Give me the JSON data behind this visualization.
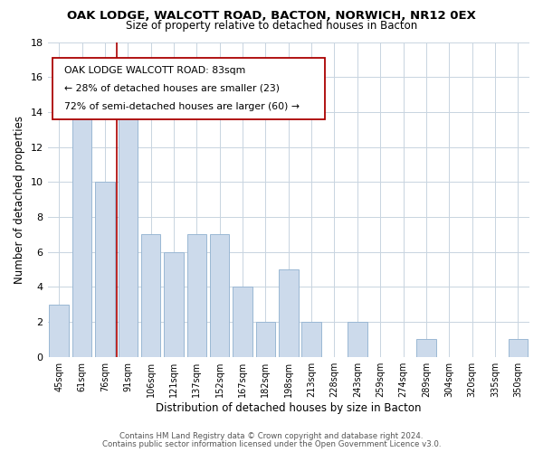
{
  "title": "OAK LODGE, WALCOTT ROAD, BACTON, NORWICH, NR12 0EX",
  "subtitle": "Size of property relative to detached houses in Bacton",
  "xlabel": "Distribution of detached houses by size in Bacton",
  "ylabel": "Number of detached properties",
  "bar_labels": [
    "45sqm",
    "61sqm",
    "76sqm",
    "91sqm",
    "106sqm",
    "121sqm",
    "137sqm",
    "152sqm",
    "167sqm",
    "182sqm",
    "198sqm",
    "213sqm",
    "228sqm",
    "243sqm",
    "259sqm",
    "274sqm",
    "289sqm",
    "304sqm",
    "320sqm",
    "335sqm",
    "350sqm"
  ],
  "bar_values": [
    3,
    14,
    10,
    15,
    7,
    6,
    7,
    7,
    4,
    2,
    5,
    2,
    0,
    2,
    0,
    0,
    1,
    0,
    0,
    0,
    1
  ],
  "bar_color": "#ccdaeb",
  "bar_edge_color": "#9ab8d4",
  "reference_line_color": "#aa0000",
  "ylim": [
    0,
    18
  ],
  "yticks": [
    0,
    2,
    4,
    6,
    8,
    10,
    12,
    14,
    16,
    18
  ],
  "annotation_title": "OAK LODGE WALCOTT ROAD: 83sqm",
  "annotation_line1": "← 28% of detached houses are smaller (23)",
  "annotation_line2": "72% of semi-detached houses are larger (60) →",
  "footer_line1": "Contains HM Land Registry data © Crown copyright and database right 2024.",
  "footer_line2": "Contains public sector information licensed under the Open Government Licence v3.0.",
  "background_color": "#ffffff",
  "grid_color": "#c8d4e0"
}
